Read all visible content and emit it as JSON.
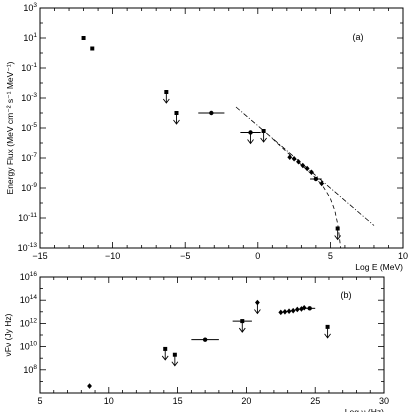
{
  "chart_data": [
    {
      "id": "panel-a",
      "type": "scatter",
      "panel_tag": "(a)",
      "xlabel": "Log E (MeV)",
      "ylabel": "Energy Flux (MeV cm⁻² s⁻¹ MeV⁻¹)",
      "xlim": [
        -15,
        10
      ],
      "ylim": [
        -13,
        3
      ],
      "ylog": true,
      "x_ticks": [
        -15,
        -10,
        -5,
        0,
        5,
        10
      ],
      "x_ticklabels": [
        "−15",
        "−10",
        "−5",
        "0",
        "5",
        "10"
      ],
      "y_ticks": [
        -13,
        -11,
        -9,
        -7,
        -5,
        -3,
        -1,
        1,
        3
      ],
      "y_base": "10",
      "y_exponents": [
        "-13",
        "-11",
        "-9",
        "-7",
        "-5",
        "-3",
        "-1",
        "1",
        "3"
      ],
      "points": [
        {
          "x": -12.0,
          "y": 1.0,
          "marker": "square"
        },
        {
          "x": -11.4,
          "y": 0.3,
          "marker": "square"
        },
        {
          "x": -6.3,
          "y": -2.6,
          "marker": "square",
          "upper_limit": true
        },
        {
          "x": -5.6,
          "y": -4.0,
          "marker": "square",
          "upper_limit": true
        },
        {
          "x": -3.2,
          "y": -4.0,
          "marker": "circle",
          "xerr": 0.9
        },
        {
          "x": -0.5,
          "y": -5.3,
          "marker": "circle",
          "xerr": 0.7,
          "upper_limit": true
        },
        {
          "x": 0.4,
          "y": -5.2,
          "marker": "square",
          "upper_limit": true
        },
        {
          "x": 2.2,
          "y": -6.95,
          "marker": "diamond"
        },
        {
          "x": 2.5,
          "y": -7.05,
          "marker": "diamond"
        },
        {
          "x": 2.8,
          "y": -7.25,
          "marker": "diamond"
        },
        {
          "x": 3.1,
          "y": -7.5,
          "marker": "diamond"
        },
        {
          "x": 3.4,
          "y": -7.7,
          "marker": "diamond"
        },
        {
          "x": 3.7,
          "y": -7.95,
          "marker": "diamond"
        },
        {
          "x": 4.0,
          "y": -8.4,
          "marker": "circle",
          "xerr": 0.4
        },
        {
          "x": 4.4,
          "y": -8.7,
          "marker": "diamond"
        },
        {
          "x": 5.5,
          "y": -11.7,
          "marker": "square",
          "upper_limit": true
        }
      ],
      "fits": [
        {
          "style": "dashdot",
          "x": [
            -1.5,
            8.0
          ],
          "y": [
            -3.6,
            -11.5
          ]
        },
        {
          "style": "dashed",
          "x": [
            1.0,
            2.0,
            3.0,
            4.0,
            4.5,
            5.0,
            5.3,
            5.5,
            5.6,
            5.7
          ],
          "y": [
            -5.7,
            -6.6,
            -7.45,
            -8.35,
            -8.9,
            -9.7,
            -10.5,
            -11.4,
            -12.1,
            -13.0
          ]
        }
      ]
    },
    {
      "id": "panel-b",
      "type": "scatter",
      "panel_tag": "(b)",
      "xlabel": "Log ν (Hz)",
      "ylabel": "νFν (Jy Hz)",
      "xlim": [
        5,
        30
      ],
      "ylim": [
        6,
        16
      ],
      "ylog": true,
      "x_ticks": [
        5,
        10,
        15,
        20,
        25,
        30
      ],
      "x_ticklabels": [
        "5",
        "10",
        "15",
        "20",
        "25",
        "30"
      ],
      "y_ticks": [
        8,
        10,
        12,
        14,
        16
      ],
      "y_base": "10",
      "y_exponents": [
        "8",
        "10",
        "12",
        "14",
        "16"
      ],
      "points": [
        {
          "x": 8.6,
          "y": 6.6,
          "marker": "diamond"
        },
        {
          "x": 14.1,
          "y": 9.8,
          "marker": "square",
          "upper_limit": true
        },
        {
          "x": 14.8,
          "y": 9.3,
          "marker": "square",
          "upper_limit": true
        },
        {
          "x": 17.0,
          "y": 10.6,
          "marker": "circle",
          "xerr": 1.0
        },
        {
          "x": 19.7,
          "y": 12.2,
          "marker": "square",
          "xerr": 0.7,
          "upper_limit": true
        },
        {
          "x": 20.8,
          "y": 13.8,
          "marker": "diamond",
          "upper_limit": true
        },
        {
          "x": 22.5,
          "y": 12.95,
          "marker": "diamond"
        },
        {
          "x": 22.8,
          "y": 13.0,
          "marker": "diamond"
        },
        {
          "x": 23.1,
          "y": 13.05,
          "marker": "diamond"
        },
        {
          "x": 23.4,
          "y": 13.1,
          "marker": "diamond"
        },
        {
          "x": 23.7,
          "y": 13.2,
          "marker": "diamond"
        },
        {
          "x": 24.0,
          "y": 13.25,
          "marker": "diamond"
        },
        {
          "x": 24.2,
          "y": 13.35,
          "marker": "diamond"
        },
        {
          "x": 24.6,
          "y": 13.3,
          "marker": "circle",
          "xerr": 0.4
        },
        {
          "x": 25.9,
          "y": 11.7,
          "marker": "square",
          "upper_limit": true
        }
      ],
      "fits": []
    }
  ]
}
